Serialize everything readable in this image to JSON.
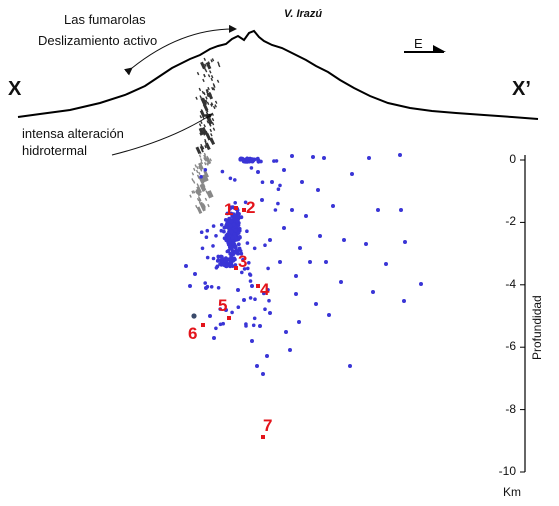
{
  "section_labels": {
    "left": "X",
    "right": "X’"
  },
  "volcano_label": "V. Irazú",
  "annotations": {
    "fumarolas": "Las fumarolas",
    "deslizamiento": "Deslizamiento activo",
    "alteracion_1": "intensa alteración",
    "alteracion_2": "hidrotermal"
  },
  "direction_label": "E",
  "colors": {
    "seismic_dots": "#3a35d6",
    "cluster_markers": "#e3141b",
    "topography": "#000000"
  },
  "chart_data": {
    "type": "scatter",
    "ylabel": "Profundidad",
    "yunit": "Km",
    "ylim": [
      -10,
      0
    ],
    "yticks": [
      {
        "value": 0,
        "label": "0"
      },
      {
        "value": -2,
        "label": "-2"
      },
      {
        "value": -4,
        "label": "-4"
      },
      {
        "value": -6,
        "label": "-6"
      },
      {
        "value": -8,
        "label": "-8"
      },
      {
        "value": -10,
        "label": "-10"
      }
    ],
    "clusters": [
      {
        "label": "1",
        "depth_km": -1.5
      },
      {
        "label": "2",
        "depth_km": -1.5
      },
      {
        "label": "3",
        "depth_km": -3.3
      },
      {
        "label": "4",
        "depth_km": -4.0
      },
      {
        "label": "5",
        "depth_km": -4.7
      },
      {
        "label": "6",
        "depth_km": -5.4
      },
      {
        "label": "7",
        "depth_km": -8.8
      }
    ]
  }
}
